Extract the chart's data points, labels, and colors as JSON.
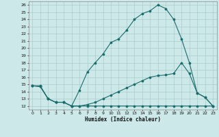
{
  "xlabel": "Humidex (Indice chaleur)",
  "bg_color": "#cce8e8",
  "grid_color": "#aacccc",
  "line_color": "#1a6b6b",
  "xlim": [
    -0.5,
    23.5
  ],
  "ylim": [
    11.5,
    26.5
  ],
  "xticks": [
    0,
    1,
    2,
    3,
    4,
    5,
    6,
    7,
    8,
    9,
    10,
    11,
    12,
    13,
    14,
    15,
    16,
    17,
    18,
    19,
    20,
    21,
    22,
    23
  ],
  "yticks": [
    12,
    13,
    14,
    15,
    16,
    17,
    18,
    19,
    20,
    21,
    22,
    23,
    24,
    25,
    26
  ],
  "line1_x": [
    0,
    1,
    2,
    3,
    4,
    5,
    6,
    7,
    8,
    9,
    10,
    11,
    12,
    13,
    14,
    15,
    16,
    17,
    18,
    19,
    20,
    21,
    22,
    23
  ],
  "line1_y": [
    14.8,
    14.8,
    13.0,
    12.5,
    12.5,
    12.0,
    14.2,
    16.7,
    18.0,
    19.2,
    20.8,
    21.3,
    22.5,
    24.0,
    24.8,
    25.2,
    26.0,
    25.5,
    24.0,
    21.3,
    18.0,
    13.8,
    13.2,
    12.0
  ],
  "line2_x": [
    0,
    1,
    2,
    3,
    4,
    5,
    6,
    7,
    8,
    9,
    10,
    11,
    12,
    13,
    14,
    15,
    16,
    17,
    18,
    19,
    20,
    21,
    22,
    23
  ],
  "line2_y": [
    14.8,
    14.7,
    13.0,
    12.5,
    12.5,
    12.0,
    12.0,
    12.2,
    12.5,
    13.0,
    13.5,
    14.0,
    14.5,
    15.0,
    15.5,
    16.0,
    16.2,
    16.3,
    16.5,
    18.0,
    16.5,
    13.8,
    13.2,
    12.0
  ],
  "line3_x": [
    0,
    1,
    2,
    3,
    4,
    5,
    6,
    7,
    8,
    9,
    10,
    11,
    12,
    13,
    14,
    15,
    16,
    17,
    18,
    19,
    20,
    21,
    22,
    23
  ],
  "line3_y": [
    14.8,
    14.7,
    13.0,
    12.5,
    12.5,
    12.0,
    12.0,
    12.0,
    12.0,
    12.0,
    12.0,
    12.0,
    12.0,
    12.0,
    12.0,
    12.0,
    12.0,
    12.0,
    12.0,
    12.0,
    12.0,
    12.0,
    12.0,
    12.0
  ]
}
